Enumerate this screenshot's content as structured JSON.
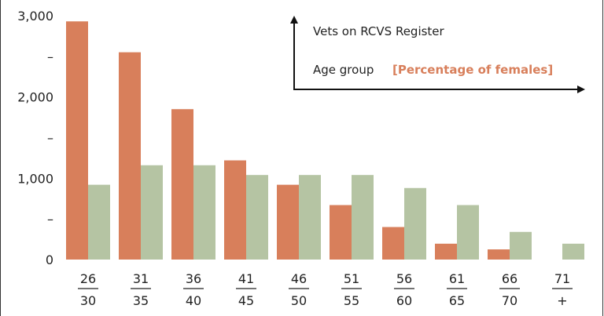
{
  "chart_data": {
    "type": "bar",
    "title": "",
    "legend": {
      "y_axis_caption": "Vets on RCVS Register",
      "x_axis_caption": "Age group",
      "x_axis_note": "[Percentage of females]"
    },
    "categories": [
      {
        "top": "26",
        "bottom": "30"
      },
      {
        "top": "31",
        "bottom": "35"
      },
      {
        "top": "36",
        "bottom": "40"
      },
      {
        "top": "41",
        "bottom": "45"
      },
      {
        "top": "46",
        "bottom": "50"
      },
      {
        "top": "51",
        "bottom": "55"
      },
      {
        "top": "56",
        "bottom": "60"
      },
      {
        "top": "61",
        "bottom": "65"
      },
      {
        "top": "66",
        "bottom": "70"
      },
      {
        "top": "71",
        "bottom": "+"
      }
    ],
    "series": [
      {
        "name": "series-orange",
        "color": "#d87f5b",
        "values": [
          2930,
          2550,
          1850,
          1220,
          920,
          670,
          400,
          195,
          125,
          0
        ]
      },
      {
        "name": "series-green",
        "color": "#b5c4a3",
        "values": [
          920,
          1160,
          1160,
          1040,
          1040,
          1040,
          880,
          670,
          340,
          195
        ]
      }
    ],
    "ylim": [
      0,
      3000
    ],
    "yticks": [
      {
        "value": 3000,
        "label": "3,000"
      },
      {
        "value": 2500,
        "label": "–"
      },
      {
        "value": 2000,
        "label": "2,000"
      },
      {
        "value": 1500,
        "label": "–"
      },
      {
        "value": 1000,
        "label": "1,000"
      },
      {
        "value": 500,
        "label": "–"
      },
      {
        "value": 0,
        "label": "0"
      }
    ],
    "grid": false,
    "legend_position": "top-right"
  }
}
